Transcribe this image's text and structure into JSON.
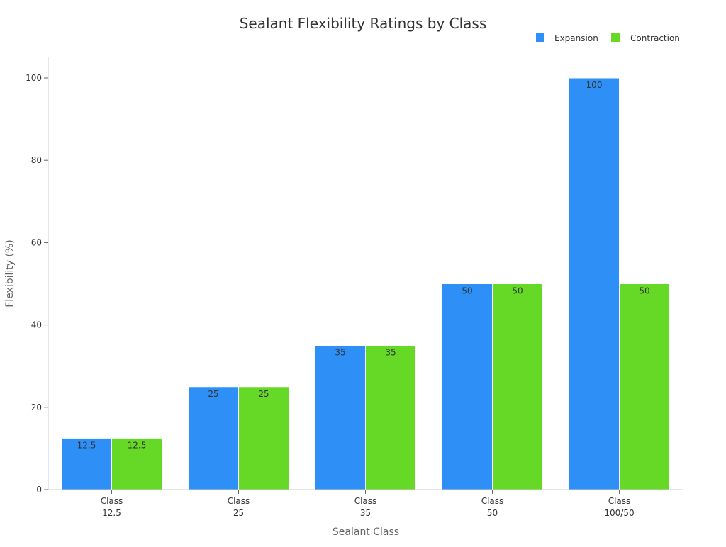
{
  "chart_data": {
    "type": "bar",
    "title": "Sealant Flexibility Ratings by Class",
    "xlabel": "Sealant Class",
    "ylabel": "Flexibility (%)",
    "categories": [
      [
        "Class",
        "12.5"
      ],
      [
        "Class",
        "25"
      ],
      [
        "Class",
        "35"
      ],
      [
        "Class",
        "50"
      ],
      [
        "Class",
        "100/50"
      ]
    ],
    "series": [
      {
        "name": "Expansion",
        "color": "#2E90F7",
        "values": [
          12.5,
          25,
          35,
          50,
          100
        ],
        "labels": [
          "12.5",
          "25",
          "35",
          "50",
          "100"
        ]
      },
      {
        "name": "Contraction",
        "color": "#66D926",
        "values": [
          12.5,
          25,
          35,
          50,
          50
        ],
        "labels": [
          "12.5",
          "25",
          "35",
          "50",
          "50"
        ]
      }
    ],
    "ylim": [
      0,
      105
    ],
    "yticks": [
      0,
      20,
      40,
      60,
      80,
      100
    ],
    "grid": false,
    "legend": "top-right"
  }
}
